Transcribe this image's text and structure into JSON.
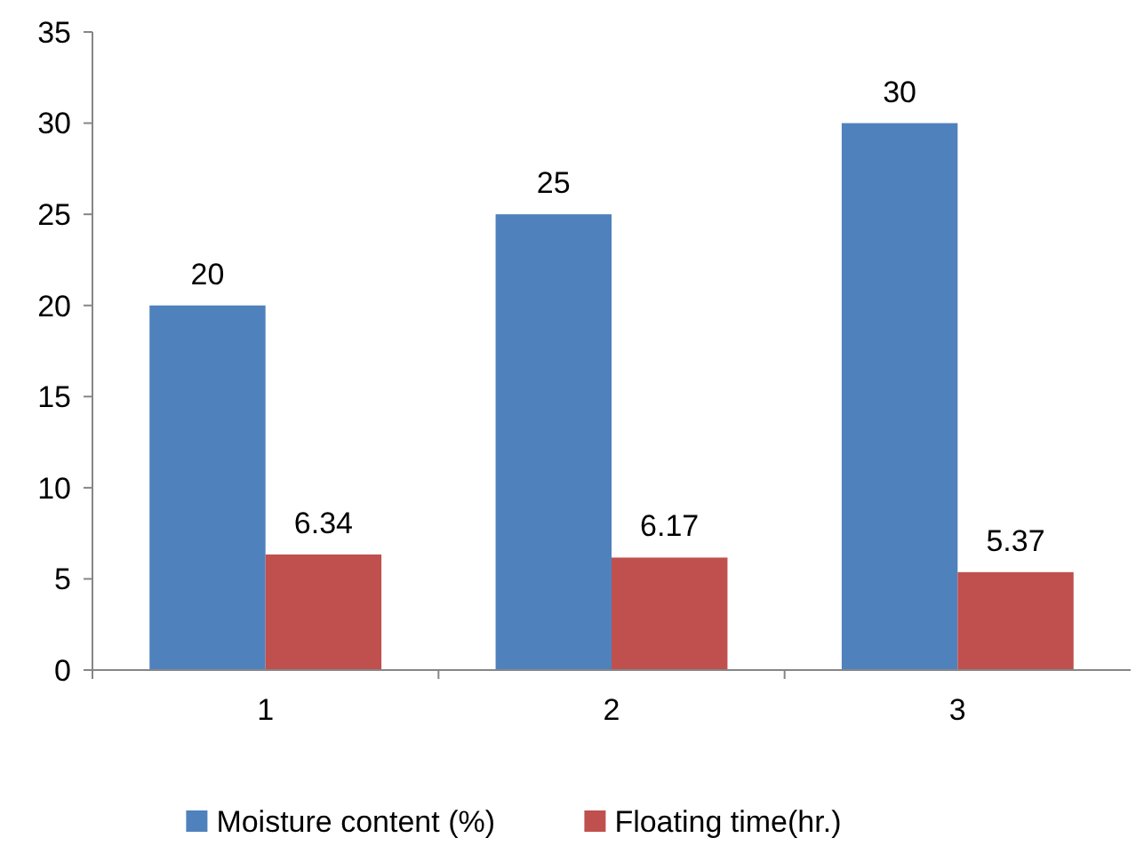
{
  "chart_data": {
    "type": "bar",
    "categories": [
      "1",
      "2",
      "3"
    ],
    "series": [
      {
        "name": "Moisture content (%)",
        "color": "#4f81bd",
        "values": [
          20,
          25,
          30
        ]
      },
      {
        "name": "Floating time(hr.)",
        "color": "#c0504d",
        "values": [
          6.34,
          6.17,
          5.37
        ]
      }
    ],
    "ylim": [
      0,
      35
    ],
    "yticks": [
      0,
      5,
      10,
      15,
      20,
      25,
      30,
      35
    ],
    "data_labels": true,
    "legend": "bottom",
    "grid": false
  }
}
